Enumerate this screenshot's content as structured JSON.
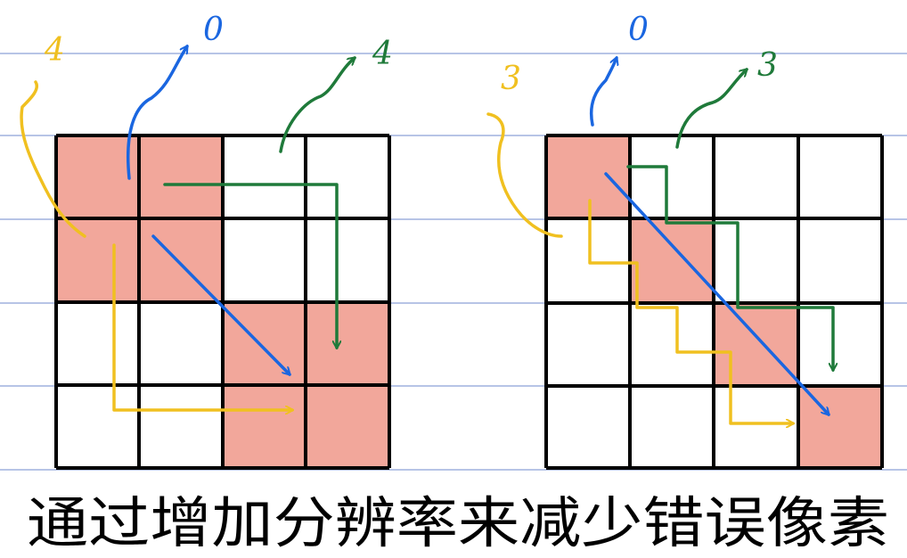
{
  "left": {
    "yellow_label": "4",
    "blue_label": "0",
    "green_label": "4"
  },
  "right": {
    "yellow_label": "3",
    "blue_label": "0",
    "green_label": "3"
  },
  "caption": "通过增加分辨率来减少错误像素"
}
